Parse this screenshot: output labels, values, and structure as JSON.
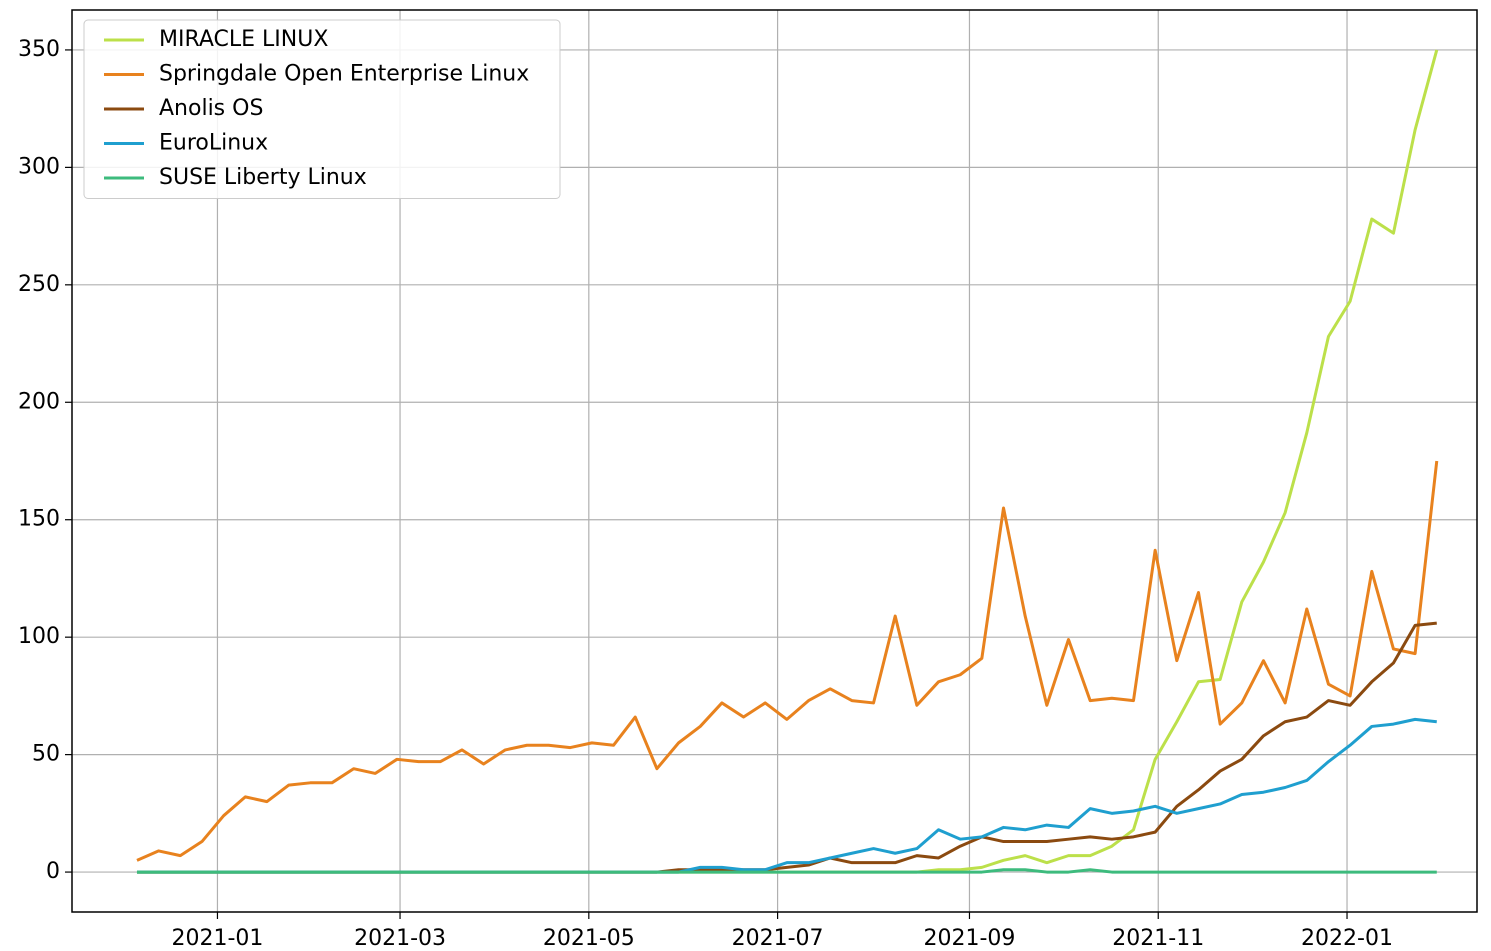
{
  "chart_data": {
    "type": "line",
    "x": [
      "2020-12-06",
      "2020-12-13",
      "2020-12-20",
      "2020-12-27",
      "2021-01-03",
      "2021-01-10",
      "2021-01-17",
      "2021-01-24",
      "2021-01-31",
      "2021-02-07",
      "2021-02-14",
      "2021-02-21",
      "2021-02-28",
      "2021-03-07",
      "2021-03-14",
      "2021-03-21",
      "2021-03-28",
      "2021-04-04",
      "2021-04-11",
      "2021-04-18",
      "2021-04-25",
      "2021-05-02",
      "2021-05-09",
      "2021-05-16",
      "2021-05-23",
      "2021-05-30",
      "2021-06-06",
      "2021-06-13",
      "2021-06-20",
      "2021-06-27",
      "2021-07-04",
      "2021-07-11",
      "2021-07-18",
      "2021-07-25",
      "2021-08-01",
      "2021-08-08",
      "2021-08-15",
      "2021-08-22",
      "2021-08-29",
      "2021-09-05",
      "2021-09-12",
      "2021-09-19",
      "2021-09-26",
      "2021-10-03",
      "2021-10-10",
      "2021-10-17",
      "2021-10-24",
      "2021-10-31",
      "2021-11-07",
      "2021-11-14",
      "2021-11-21",
      "2021-11-28",
      "2021-12-05",
      "2021-12-12",
      "2021-12-19",
      "2021-12-26",
      "2022-01-02",
      "2022-01-09",
      "2022-01-16",
      "2022-01-23",
      "2022-01-30"
    ],
    "series": [
      {
        "name": "MIRACLE LINUX",
        "color": "#bce04a",
        "values": [
          0,
          0,
          0,
          0,
          0,
          0,
          0,
          0,
          0,
          0,
          0,
          0,
          0,
          0,
          0,
          0,
          0,
          0,
          0,
          0,
          0,
          0,
          0,
          0,
          0,
          0,
          0,
          0,
          0,
          0,
          0,
          0,
          0,
          0,
          0,
          0,
          0,
          1,
          1,
          2,
          5,
          7,
          4,
          7,
          7,
          11,
          18,
          48,
          64,
          81,
          82,
          115,
          132,
          153,
          187,
          228,
          243,
          278,
          272,
          316,
          350
        ]
      },
      {
        "name": "Springdale Open Enterprise Linux",
        "color": "#e8821e",
        "values": [
          5,
          9,
          7,
          13,
          24,
          32,
          30,
          37,
          38,
          38,
          44,
          42,
          48,
          47,
          47,
          52,
          46,
          52,
          54,
          54,
          53,
          55,
          54,
          66,
          44,
          55,
          62,
          72,
          66,
          72,
          65,
          73,
          78,
          73,
          72,
          109,
          71,
          81,
          84,
          91,
          155,
          109,
          71,
          99,
          73,
          74,
          73,
          137,
          90,
          119,
          63,
          72,
          90,
          72,
          112,
          80,
          75,
          128,
          95,
          93,
          175
        ]
      },
      {
        "name": "Anolis OS",
        "color": "#8b4a10",
        "values": [
          0,
          0,
          0,
          0,
          0,
          0,
          0,
          0,
          0,
          0,
          0,
          0,
          0,
          0,
          0,
          0,
          0,
          0,
          0,
          0,
          0,
          0,
          0,
          0,
          0,
          1,
          1,
          1,
          1,
          1,
          2,
          3,
          6,
          4,
          4,
          4,
          7,
          6,
          11,
          15,
          13,
          13,
          13,
          14,
          15,
          14,
          15,
          17,
          28,
          35,
          43,
          48,
          58,
          64,
          66,
          73,
          71,
          81,
          89,
          105,
          106
        ]
      },
      {
        "name": "EuroLinux",
        "color": "#1f9fcf",
        "values": [
          0,
          0,
          0,
          0,
          0,
          0,
          0,
          0,
          0,
          0,
          0,
          0,
          0,
          0,
          0,
          0,
          0,
          0,
          0,
          0,
          0,
          0,
          0,
          0,
          0,
          0,
          2,
          2,
          1,
          1,
          4,
          4,
          6,
          8,
          10,
          8,
          10,
          18,
          14,
          15,
          19,
          18,
          20,
          19,
          27,
          25,
          26,
          28,
          25,
          27,
          29,
          33,
          34,
          36,
          39,
          47,
          54,
          62,
          63,
          65,
          64
        ]
      },
      {
        "name": "SUSE Liberty Linux",
        "color": "#3dbb7d",
        "values": [
          0,
          0,
          0,
          0,
          0,
          0,
          0,
          0,
          0,
          0,
          0,
          0,
          0,
          0,
          0,
          0,
          0,
          0,
          0,
          0,
          0,
          0,
          0,
          0,
          0,
          0,
          0,
          0,
          0,
          0,
          0,
          0,
          0,
          0,
          0,
          0,
          0,
          0,
          0,
          0,
          1,
          1,
          0,
          0,
          1,
          0,
          0,
          0,
          0,
          0,
          0,
          0,
          0,
          0,
          0,
          0,
          0,
          0,
          0,
          0,
          0
        ]
      }
    ],
    "xlim": [
      "2020-11-15",
      "2022-02-12"
    ],
    "xticks": [
      {
        "value": "2021-01-01",
        "label": "2021-01"
      },
      {
        "value": "2021-03-01",
        "label": "2021-03"
      },
      {
        "value": "2021-05-01",
        "label": "2021-05"
      },
      {
        "value": "2021-07-01",
        "label": "2021-07"
      },
      {
        "value": "2021-09-01",
        "label": "2021-09"
      },
      {
        "value": "2021-11-01",
        "label": "2021-11"
      },
      {
        "value": "2022-01-01",
        "label": "2022-01"
      }
    ],
    "ylim": [
      -17,
      367
    ],
    "yticks": [
      0,
      50,
      100,
      150,
      200,
      250,
      300,
      350
    ],
    "grid": true,
    "legend": "upper left"
  }
}
